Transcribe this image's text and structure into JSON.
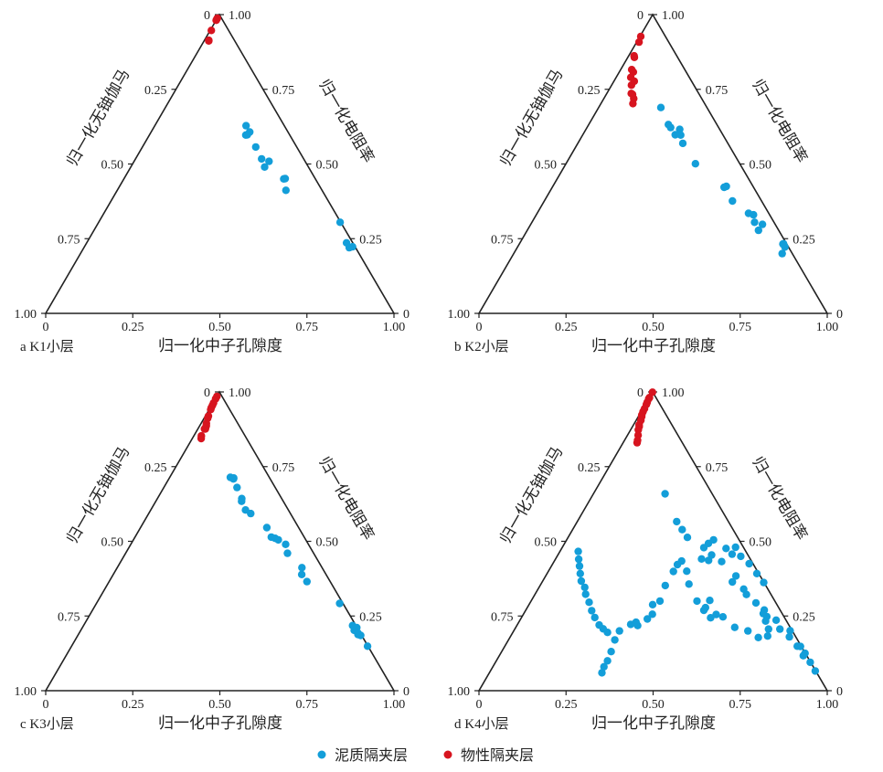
{
  "colors": {
    "mud": "#139ed9",
    "phys": "#d7141f",
    "axis": "#222222"
  },
  "legend": [
    {
      "key": "mud",
      "label": "泥质隔夹层"
    },
    {
      "key": "phys",
      "label": "物性隔夹层"
    }
  ],
  "chart_data": [
    {
      "type": "scatter",
      "subtype": "ternary",
      "panel_label": "a K1小层",
      "xlabel": "归一化中子孔隙度",
      "left_axis_label": "归一化无铀伽马",
      "right_axis_label": "归一化电阻率",
      "bottom_ticks": [
        "0",
        "0.25",
        "0.50",
        "0.75",
        "1.00"
      ],
      "left_ticks": [
        "0",
        "0.25",
        "0.50",
        "0.75",
        "1.00"
      ],
      "right_ticks": [
        "0",
        "0.25",
        "0.50",
        "0.75",
        "1.00"
      ],
      "series": [
        {
          "name": "泥质隔夹层",
          "key": "mud",
          "points": [
            [
              0.597,
              0.688
            ],
            [
              0.628,
              0.706
            ],
            [
              0.557,
              0.736
            ],
            [
              0.607,
              0.722
            ],
            [
              0.598,
              0.7
            ],
            [
              0.517,
              0.751
            ],
            [
              0.49,
              0.755
            ],
            [
              0.509,
              0.79
            ],
            [
              0.45,
              0.836
            ],
            [
              0.451,
              0.844
            ],
            [
              0.412,
              0.825
            ],
            [
              0.305,
              0.999
            ],
            [
              0.223,
              0.992
            ],
            [
              0.22,
              0.978
            ],
            [
              0.236,
              0.978
            ]
          ]
        },
        {
          "name": "物性隔夹层",
          "key": "phys",
          "points": [
            [
              0.988,
              0.014
            ],
            [
              0.985,
              0.01
            ],
            [
              0.981,
              0.022
            ],
            [
              0.947,
              0.064
            ],
            [
              0.914,
              0.147
            ],
            [
              0.912,
              0.155
            ]
          ]
        }
      ]
    },
    {
      "type": "scatter",
      "subtype": "ternary",
      "panel_label": "b K2小层",
      "xlabel": "归一化中子孔隙度",
      "left_axis_label": "归一化无铀伽马",
      "right_axis_label": "归一化电阻率",
      "bottom_ticks": [
        "0",
        "0.25",
        "0.50",
        "0.75",
        "1.00"
      ],
      "left_ticks": [
        "0",
        "0.25",
        "0.50",
        "0.75",
        "1.00"
      ],
      "right_ticks": [
        "0",
        "0.25",
        "0.50",
        "0.75",
        "1.00"
      ],
      "series": [
        {
          "name": "泥质隔夹层",
          "key": "mud",
          "points": [
            [
              0.689,
              0.576
            ],
            [
              0.632,
              0.623
            ],
            [
              0.598,
              0.661
            ],
            [
              0.622,
              0.637
            ],
            [
              0.616,
              0.702
            ],
            [
              0.597,
              0.7
            ],
            [
              0.569,
              0.701
            ],
            [
              0.501,
              0.746
            ],
            [
              0.422,
              0.855
            ],
            [
              0.376,
              0.867
            ],
            [
              0.425,
              0.868
            ],
            [
              0.335,
              0.914
            ],
            [
              0.33,
              0.932
            ],
            [
              0.305,
              0.921
            ],
            [
              0.278,
              0.921
            ],
            [
              0.298,
              0.949
            ],
            [
              0.2,
              0.965
            ],
            [
              0.232,
              0.987
            ],
            [
              0.222,
              0.988
            ],
            [
              0.233,
              0.99
            ]
          ]
        },
        {
          "name": "物性隔夹层",
          "key": "phys",
          "points": [
            [
              0.927,
              0.033
            ],
            [
              0.908,
              0.076
            ],
            [
              0.862,
              0.113
            ],
            [
              0.857,
              0.132
            ],
            [
              0.816,
              0.173
            ],
            [
              0.808,
              0.211
            ],
            [
              0.79,
              0.201
            ],
            [
              0.764,
              0.242
            ],
            [
              0.777,
              0.263
            ],
            [
              0.736,
              0.267
            ],
            [
              0.733,
              0.284
            ],
            [
              0.719,
              0.307
            ],
            [
              0.702,
              0.31
            ]
          ]
        }
      ]
    },
    {
      "type": "scatter",
      "subtype": "ternary",
      "panel_label": "c K3小层",
      "xlabel": "归一化中子孔隙度",
      "left_axis_label": "归一化无铀伽马",
      "right_axis_label": "归一化电阻率",
      "bottom_ticks": [
        "0",
        "0.25",
        "0.50",
        "0.75",
        "1.00"
      ],
      "left_ticks": [
        "0",
        "0.25",
        "0.50",
        "0.75",
        "1.00"
      ],
      "right_ticks": [
        "0",
        "0.25",
        "0.50",
        "0.75",
        "1.00"
      ],
      "series": [
        {
          "name": "泥质隔夹层",
          "key": "mud",
          "points": [
            [
              0.714,
              0.61
            ],
            [
              0.712,
              0.643
            ],
            [
              0.709,
              0.639
            ],
            [
              0.634,
              0.674
            ],
            [
              0.68,
              0.658
            ],
            [
              0.643,
              0.68
            ],
            [
              0.605,
              0.69
            ],
            [
              0.593,
              0.721
            ],
            [
              0.546,
              0.8
            ],
            [
              0.514,
              0.807
            ],
            [
              0.51,
              0.827
            ],
            [
              0.505,
              0.842
            ],
            [
              0.46,
              0.862
            ],
            [
              0.49,
              0.873
            ],
            [
              0.389,
              0.887
            ],
            [
              0.412,
              0.903
            ],
            [
              0.365,
              0.896
            ],
            [
              0.292,
              0.988
            ],
            [
              0.202,
              0.985
            ],
            [
              0.188,
              0.99
            ],
            [
              0.193,
              0.993
            ],
            [
              0.185,
              0.998
            ],
            [
              0.149,
              1.0
            ],
            [
              0.211,
              1.0
            ],
            [
              0.218,
              0.989
            ]
          ]
        },
        {
          "name": "物性隔夹层",
          "key": "phys",
          "points": [
            [
              0.985,
              0.022
            ],
            [
              0.977,
              0.034
            ],
            [
              0.963,
              0.043
            ],
            [
              0.955,
              0.055
            ],
            [
              0.947,
              0.059
            ],
            [
              0.941,
              0.079
            ],
            [
              0.919,
              0.112
            ],
            [
              0.912,
              0.118
            ],
            [
              0.895,
              0.145
            ],
            [
              0.883,
              0.169
            ],
            [
              0.876,
              0.176
            ],
            [
              0.887,
              0.169
            ],
            [
              0.876,
              0.155
            ],
            [
              0.853,
              0.149
            ],
            [
              0.844,
              0.166
            ]
          ]
        }
      ]
    },
    {
      "type": "scatter",
      "subtype": "ternary",
      "panel_label": "d K4小层",
      "xlabel": "归一化中子孔隙度",
      "left_axis_label": "归一化无铀伽马",
      "right_axis_label": "归一化电阻率",
      "bottom_ticks": [
        "0",
        "0.25",
        "0.50",
        "0.75",
        "1.00"
      ],
      "left_ticks": [
        "0",
        "0.25",
        "0.50",
        "0.75",
        "1.00"
      ],
      "right_ticks": [
        "0",
        "0.25",
        "0.50",
        "0.75",
        "1.00"
      ],
      "series": [
        {
          "name": "泥质隔夹层",
          "key": "mud",
          "points": [
            [
              0.659,
              0.605
            ],
            [
              0.566,
              0.659
            ],
            [
              0.539,
              0.684
            ],
            [
              0.513,
              0.705
            ],
            [
              0.436,
              0.785
            ],
            [
              0.364,
              0.86
            ],
            [
              0.322,
              0.897
            ],
            [
              0.27,
              0.939
            ],
            [
              0.236,
              0.964
            ],
            [
              0.201,
              0.994
            ],
            [
              0.148,
              0.998
            ],
            [
              0.125,
              1.0
            ],
            [
              0.095,
              1.0
            ],
            [
              0.066,
              1.0
            ],
            [
              0.117,
              0.99
            ],
            [
              0.149,
              0.988
            ],
            [
              0.18,
              0.979
            ],
            [
              0.206,
              0.96
            ],
            [
              0.248,
              0.936
            ],
            [
              0.294,
              0.92
            ],
            [
              0.34,
              0.896
            ],
            [
              0.384,
              0.888
            ],
            [
              0.432,
              0.849
            ],
            [
              0.454,
              0.81
            ],
            [
              0.441,
              0.751
            ],
            [
              0.479,
              0.782
            ],
            [
              0.493,
              0.816
            ],
            [
              0.505,
              0.853
            ],
            [
              0.476,
              0.902
            ],
            [
              0.457,
              0.92
            ],
            [
              0.48,
              0.958
            ],
            [
              0.45,
              0.96
            ],
            [
              0.425,
              0.982
            ],
            [
              0.392,
              0.992
            ],
            [
              0.362,
              1.0
            ],
            [
              0.258,
              0.928
            ],
            [
              0.233,
              0.923
            ],
            [
              0.206,
              0.919
            ],
            [
              0.183,
              0.904
            ],
            [
              0.178,
              0.869
            ],
            [
              0.2,
              0.842
            ],
            [
              0.212,
              0.799
            ],
            [
              0.247,
              0.768
            ],
            [
              0.255,
              0.745
            ],
            [
              0.244,
              0.72
            ],
            [
              0.269,
              0.701
            ],
            [
              0.302,
              0.735
            ],
            [
              0.278,
              0.71
            ],
            [
              0.3,
              0.682
            ],
            [
              0.357,
              0.662
            ],
            [
              0.4,
              0.663
            ],
            [
              0.434,
              0.647
            ],
            [
              0.422,
              0.623
            ],
            [
              0.399,
              0.599
            ],
            [
              0.352,
              0.556
            ],
            [
              0.3,
              0.53
            ],
            [
              0.288,
              0.5
            ],
            [
              0.256,
              0.499
            ],
            [
              0.24,
              0.48
            ],
            [
              0.218,
              0.445
            ],
            [
              0.229,
              0.438
            ],
            [
              0.222,
              0.419
            ],
            [
              0.2,
              0.381
            ],
            [
              0.17,
              0.369
            ],
            [
              0.131,
              0.363
            ],
            [
              0.1,
              0.356
            ],
            [
              0.08,
              0.348
            ],
            [
              0.06,
              0.345
            ],
            [
              0.195,
              0.339
            ],
            [
              0.207,
              0.321
            ],
            [
              0.22,
              0.303
            ],
            [
              0.245,
              0.28
            ],
            [
              0.268,
              0.261
            ],
            [
              0.296,
              0.241
            ],
            [
              0.323,
              0.216
            ],
            [
              0.346,
              0.202
            ],
            [
              0.367,
              0.176
            ],
            [
              0.392,
              0.158
            ],
            [
              0.417,
              0.14
            ],
            [
              0.44,
              0.121
            ],
            [
              0.466,
              0.1
            ]
          ]
        },
        {
          "name": "物性隔夹层",
          "key": "phys",
          "points": [
            [
              0.999,
              0.0
            ],
            [
              0.981,
              0.01
            ],
            [
              0.977,
              0.013
            ],
            [
              0.965,
              0.05
            ],
            [
              0.958,
              0.07
            ],
            [
              0.944,
              0.084
            ],
            [
              0.934,
              0.081
            ],
            [
              0.923,
              0.093
            ],
            [
              0.917,
              0.122
            ],
            [
              0.905,
              0.143
            ],
            [
              0.89,
              0.146
            ],
            [
              0.884,
              0.168
            ],
            [
              0.873,
              0.176
            ],
            [
              0.855,
              0.212
            ],
            [
              0.838,
              0.232
            ],
            [
              0.83,
              0.238
            ]
          ]
        }
      ]
    }
  ]
}
